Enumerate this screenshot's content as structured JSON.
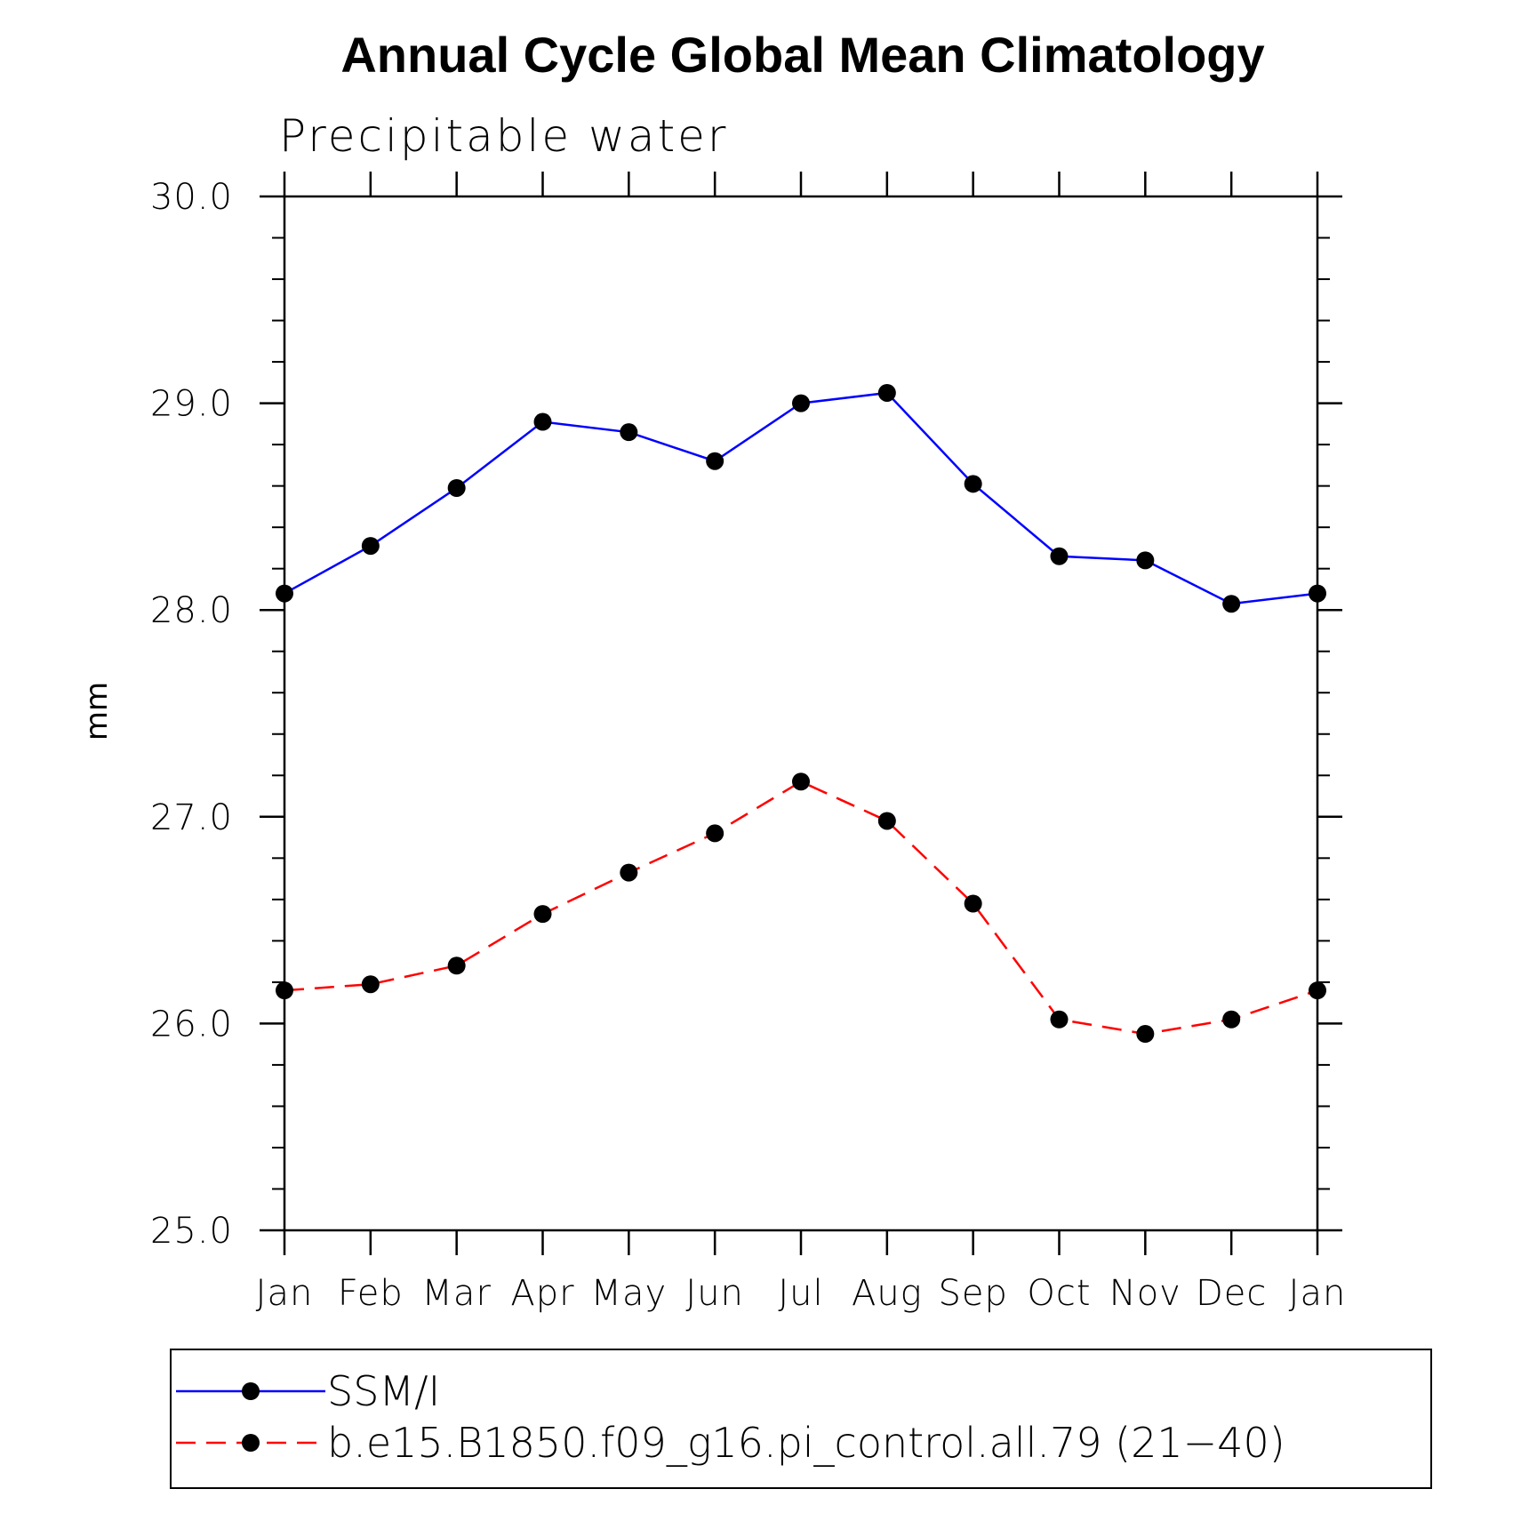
{
  "chart_data": {
    "type": "line",
    "title": "Annual Cycle Global Mean Climatology",
    "subtitle": "Precipitable water",
    "ylabel": "mm",
    "xlabel": "",
    "categories": [
      "Jan",
      "Feb",
      "Mar",
      "Apr",
      "May",
      "Jun",
      "Jul",
      "Aug",
      "Sep",
      "Oct",
      "Nov",
      "Dec",
      "Jan"
    ],
    "ylim": [
      25.0,
      30.0
    ],
    "yticks": [
      "25.0",
      "26.0",
      "27.0",
      "28.0",
      "29.0",
      "30.0"
    ],
    "grid": false,
    "legend_position": "bottom",
    "series": [
      {
        "name": "SSM/I",
        "color": "#0000ff",
        "line_style": "solid",
        "marker": "filled-circle",
        "values": [
          28.08,
          28.31,
          28.59,
          28.91,
          28.86,
          28.72,
          29.0,
          29.05,
          28.61,
          28.26,
          28.24,
          28.03,
          28.08
        ]
      },
      {
        "name": "b.e15.B1850.f09_g16.pi_control.all.79 (21−40)",
        "color": "#ff0000",
        "line_style": "dashed",
        "marker": "filled-circle",
        "values": [
          26.16,
          26.19,
          26.28,
          26.53,
          26.73,
          26.92,
          27.17,
          26.98,
          26.58,
          26.02,
          25.95,
          26.02,
          26.16
        ]
      }
    ]
  }
}
